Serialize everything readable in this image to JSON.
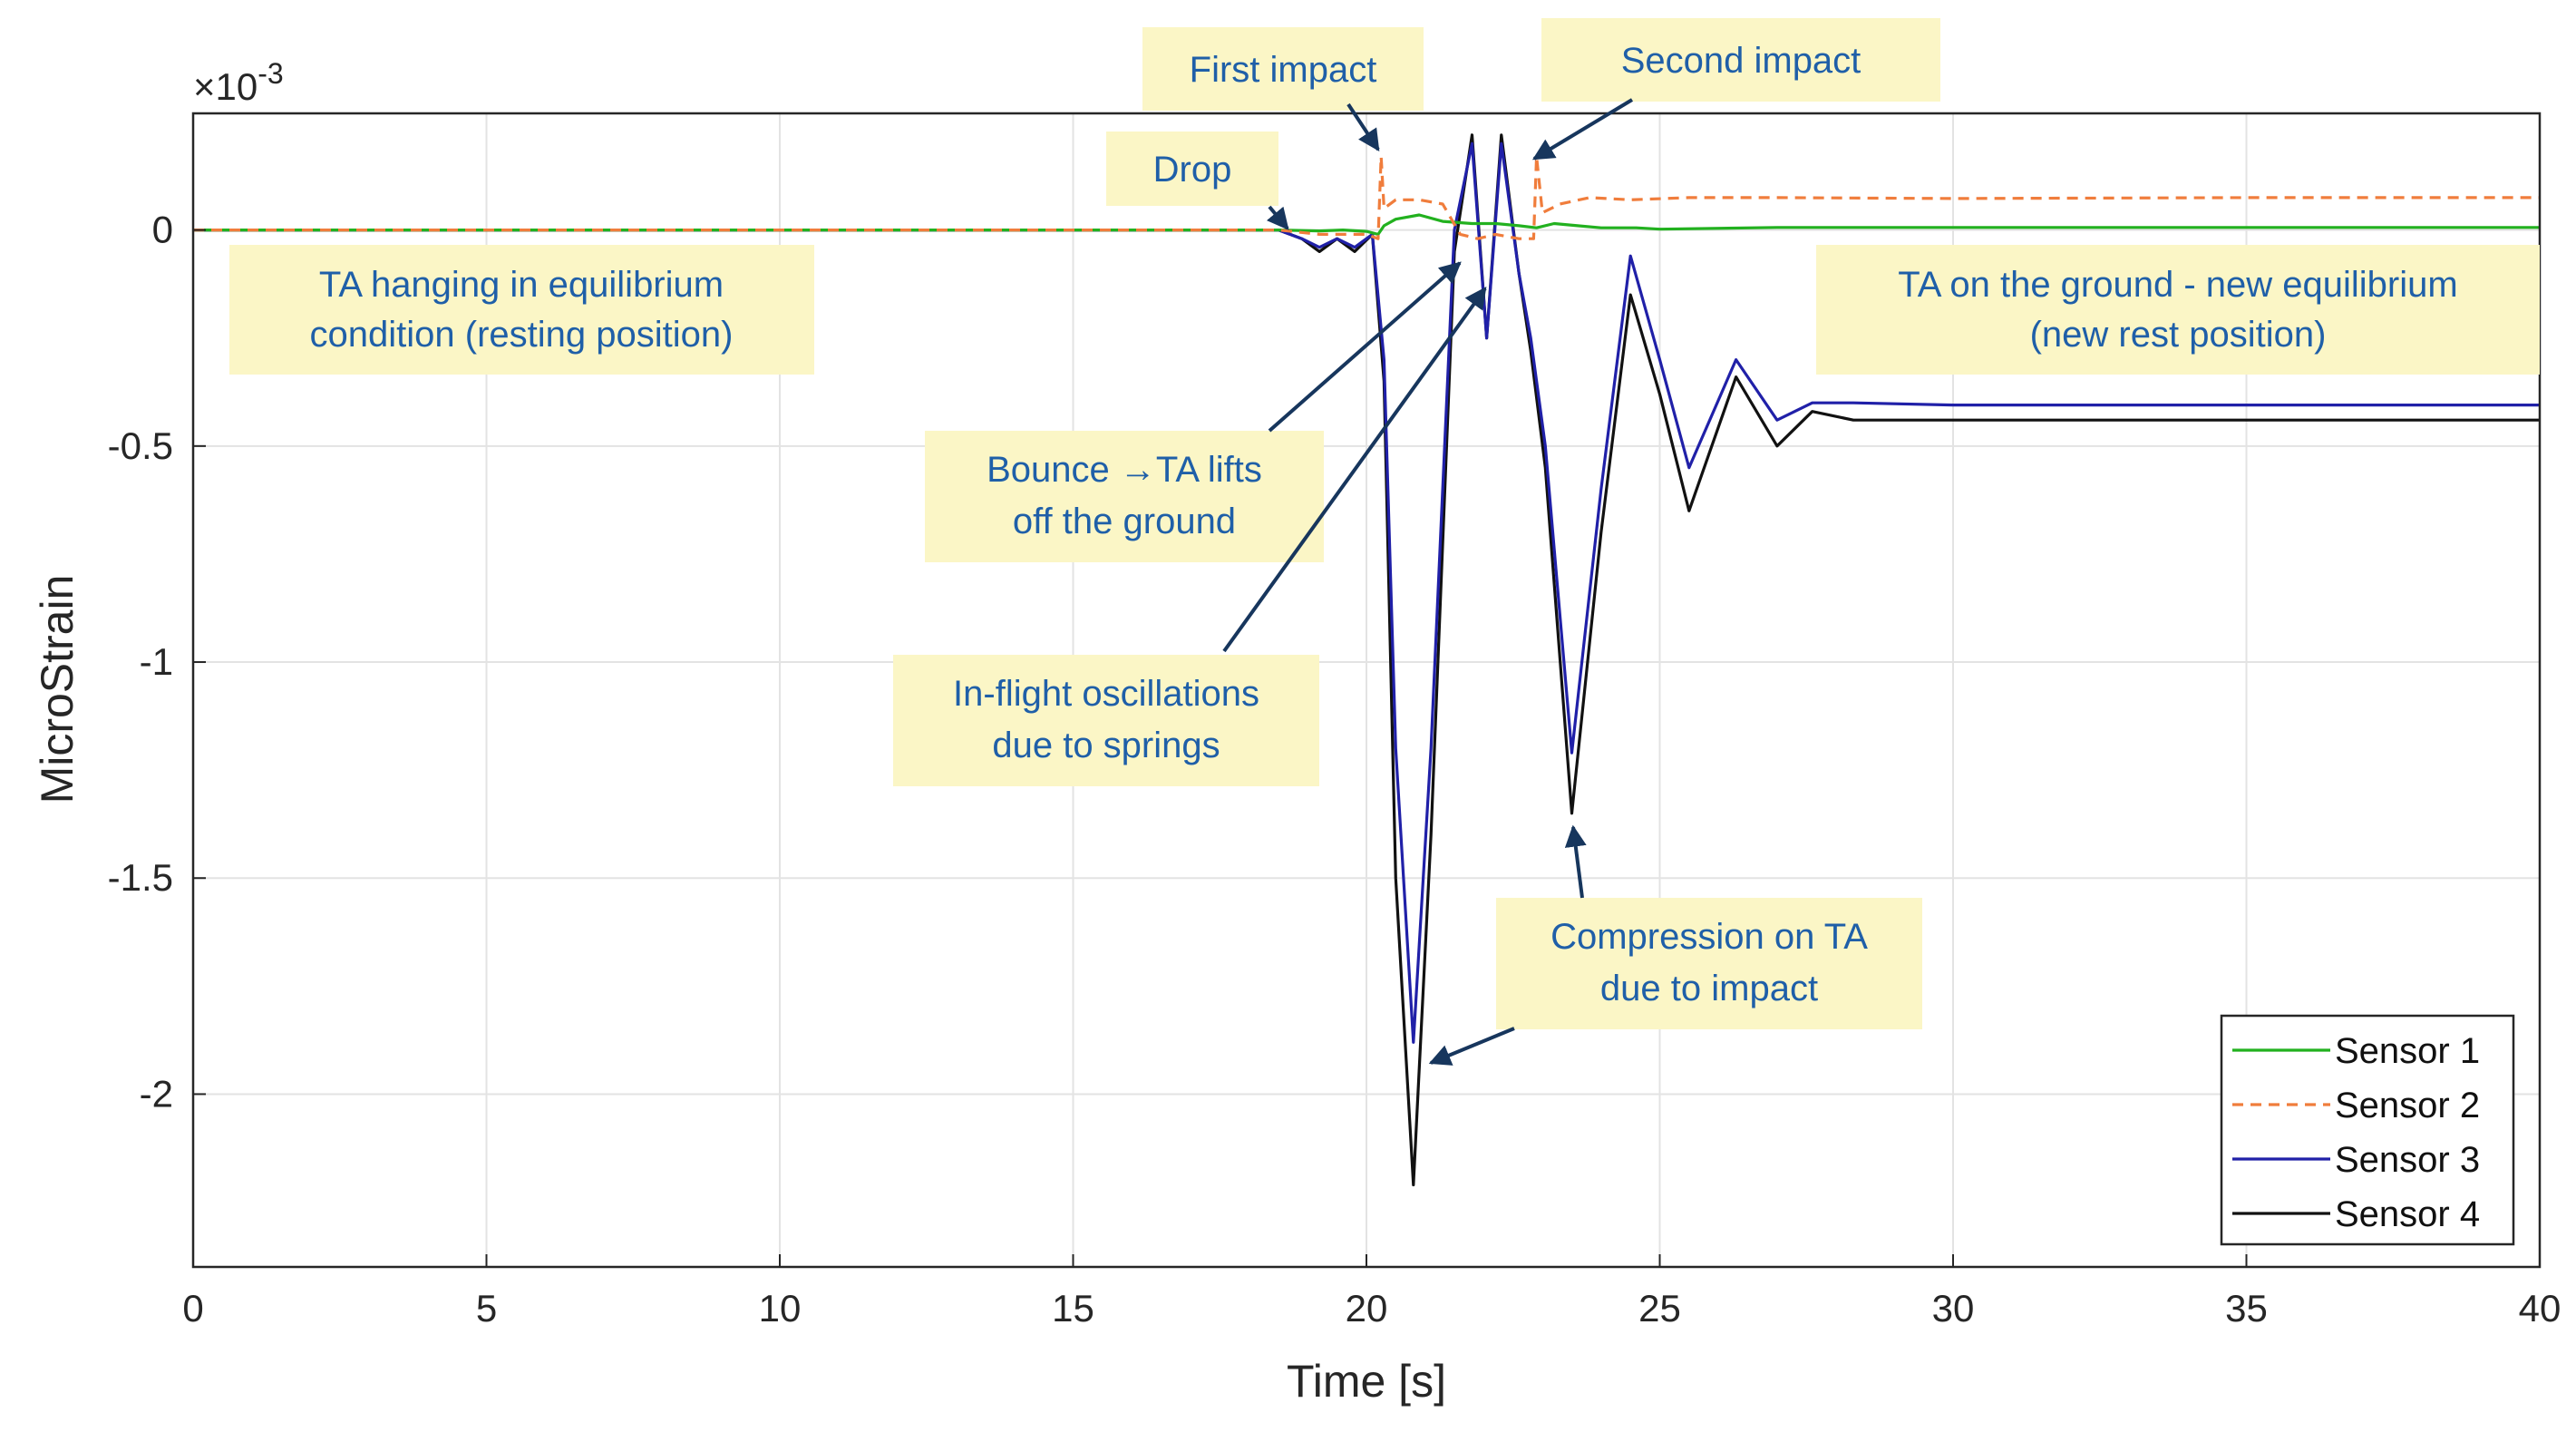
{
  "chart_data": {
    "type": "line",
    "xlabel": "Time [s]",
    "ylabel": "MicroStrain",
    "y_exponent_label": "×10",
    "y_exponent_power": "-3",
    "xlim": [
      0,
      40
    ],
    "ylim": [
      -2.4,
      0.27
    ],
    "x_ticks": [
      0,
      5,
      10,
      15,
      20,
      25,
      30,
      35,
      40
    ],
    "x_tick_labels": [
      "0",
      "5",
      "10",
      "15",
      "20",
      "25",
      "30",
      "35",
      "40"
    ],
    "y_ticks": [
      0,
      -0.5,
      -1,
      -1.5,
      -2
    ],
    "y_tick_labels": [
      "0",
      "-0.5",
      "-1",
      "-1.5",
      "-2"
    ],
    "grid": true,
    "legend_position": "bottom-right",
    "series": [
      {
        "name": "Sensor 1",
        "color": "#22b11f",
        "dash": "solid",
        "x": [
          0,
          18.5,
          19.2,
          19.6,
          20.0,
          20.2,
          20.3,
          20.5,
          20.9,
          21.3,
          21.8,
          22.2,
          22.6,
          22.9,
          23.2,
          23.6,
          24.0,
          24.6,
          25.0,
          27.0,
          30.0,
          35.0,
          40.0
        ],
        "y": [
          0,
          0,
          -0.002,
          0.0,
          -0.003,
          -0.01,
          0.01,
          0.025,
          0.035,
          0.02,
          0.015,
          0.015,
          0.01,
          0.005,
          0.015,
          0.01,
          0.005,
          0.005,
          0.002,
          0.006,
          0.006,
          0.006,
          0.006
        ]
      },
      {
        "name": "Sensor 2",
        "color": "#f07d3c",
        "dash": "dashed",
        "x": [
          0,
          18.5,
          19.2,
          20.0,
          20.2,
          20.25,
          20.3,
          20.5,
          20.9,
          21.3,
          21.6,
          21.9,
          22.2,
          22.6,
          22.85,
          22.9,
          23.0,
          23.3,
          23.8,
          24.5,
          25.5,
          27.0,
          30.0,
          35.0,
          40.0
        ],
        "y": [
          0,
          0,
          -0.01,
          -0.01,
          -0.02,
          0.17,
          0.05,
          0.07,
          0.07,
          0.06,
          -0.01,
          -0.02,
          -0.01,
          -0.02,
          -0.02,
          0.17,
          0.04,
          0.06,
          0.075,
          0.07,
          0.075,
          0.075,
          0.073,
          0.075,
          0.075
        ]
      },
      {
        "name": "Sensor 3",
        "color": "#2020a8",
        "dash": "solid",
        "x": [
          0,
          18.5,
          18.9,
          19.2,
          19.5,
          19.8,
          20.1,
          20.3,
          20.5,
          20.8,
          21.1,
          21.5,
          21.8,
          22.05,
          22.3,
          22.6,
          22.8,
          23.05,
          23.5,
          24.0,
          24.5,
          25.0,
          25.5,
          26.3,
          27.0,
          27.6,
          28.3,
          30.0,
          35.0,
          40.0
        ],
        "y": [
          0,
          0,
          -0.02,
          -0.04,
          -0.02,
          -0.04,
          -0.01,
          -0.3,
          -1.2,
          -1.88,
          -1.2,
          0.0,
          0.2,
          -0.25,
          0.2,
          -0.1,
          -0.25,
          -0.5,
          -1.21,
          -0.6,
          -0.06,
          -0.3,
          -0.55,
          -0.3,
          -0.44,
          -0.4,
          -0.4,
          -0.405,
          -0.405,
          -0.405
        ]
      },
      {
        "name": "Sensor 4",
        "color": "#111111",
        "dash": "solid",
        "x": [
          0,
          18.5,
          18.9,
          19.2,
          19.5,
          19.8,
          20.1,
          20.3,
          20.5,
          20.8,
          21.1,
          21.5,
          21.8,
          22.05,
          22.3,
          22.6,
          22.8,
          23.05,
          23.5,
          24.0,
          24.5,
          25.0,
          25.5,
          26.3,
          27.0,
          27.6,
          28.3,
          30.0,
          35.0,
          40.0
        ],
        "y": [
          0,
          0,
          -0.02,
          -0.05,
          -0.02,
          -0.05,
          -0.01,
          -0.35,
          -1.5,
          -2.21,
          -1.4,
          -0.05,
          0.22,
          -0.25,
          0.22,
          -0.1,
          -0.28,
          -0.55,
          -1.35,
          -0.7,
          -0.15,
          -0.38,
          -0.65,
          -0.34,
          -0.5,
          -0.42,
          -0.44,
          -0.44,
          -0.44,
          -0.44
        ]
      }
    ],
    "annotations": [
      {
        "lines": [
          "First impact"
        ]
      },
      {
        "lines": [
          "Second impact"
        ]
      },
      {
        "lines": [
          "Drop"
        ]
      },
      {
        "lines": [
          "TA hanging in equilibrium",
          "condition (resting position)"
        ]
      },
      {
        "lines": [
          "TA on the ground - new equilibrium",
          "(new rest position)"
        ]
      },
      {
        "lines": [
          "Bounce →TA lifts",
          "off the ground"
        ]
      },
      {
        "lines": [
          "In-flight oscillations",
          "due to springs"
        ]
      },
      {
        "lines": [
          "Compression on TA",
          "due to impact"
        ]
      }
    ]
  }
}
